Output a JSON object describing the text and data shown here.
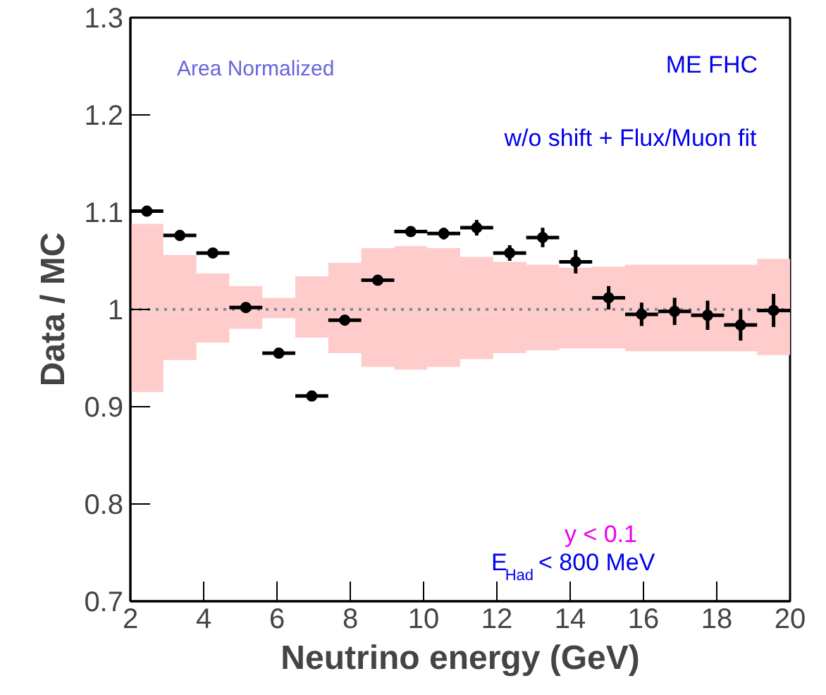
{
  "chart_data": {
    "type": "scatter",
    "xlabel": "Neutrino energy (GeV)",
    "ylabel": "Data / MC",
    "x": [
      2.45,
      3.35,
      4.25,
      5.15,
      6.05,
      6.95,
      7.85,
      8.75,
      9.65,
      10.55,
      11.45,
      12.35,
      13.25,
      14.15,
      15.05,
      15.95,
      16.85,
      17.75,
      18.65,
      19.55
    ],
    "series": [
      {
        "color": "#000000",
        "marker": "circle",
        "values": [
          1.101,
          1.076,
          1.058,
          1.002,
          0.955,
          0.911,
          0.989,
          1.03,
          1.08,
          1.078,
          1.084,
          1.058,
          1.074,
          1.049,
          1.012,
          0.995,
          0.998,
          0.994,
          0.984,
          0.999
        ],
        "errors": [
          0.003,
          0.003,
          0.003,
          0.003,
          0.003,
          0.003,
          0.003,
          0.003,
          0.004,
          0.006,
          0.008,
          0.008,
          0.01,
          0.012,
          0.012,
          0.012,
          0.014,
          0.015,
          0.016,
          0.017
        ],
        "xerrors": [
          0.45,
          0.45,
          0.45,
          0.45,
          0.45,
          0.45,
          0.45,
          0.45,
          0.45,
          0.45,
          0.45,
          0.45,
          0.45,
          0.45,
          0.45,
          0.45,
          0.45,
          0.45,
          0.45,
          0.45
        ]
      },
      {
        "type": "line",
        "color": "#7a8aa0",
        "line_style": "dotted",
        "x": [
          2,
          2.45,
          3.35,
          4.25,
          5.15,
          6.05,
          6.95,
          7.85,
          8.75,
          9.65,
          10.55,
          11.45,
          12.35,
          13.25,
          14.15,
          15.05,
          15.95,
          16.85,
          17.75,
          18.65,
          19.55,
          20
        ],
        "values": [
          1,
          1,
          1,
          1,
          1,
          1,
          1,
          1,
          1,
          1,
          1,
          1,
          1,
          1,
          1,
          1,
          1,
          1,
          1,
          1,
          1,
          1
        ],
        "lower": [
          0.915,
          0.915,
          0.948,
          0.966,
          0.98,
          0.991,
          0.971,
          0.955,
          0.941,
          0.938,
          0.941,
          0.949,
          0.955,
          0.958,
          0.96,
          0.96,
          0.957,
          0.957,
          0.957,
          0.957,
          0.953,
          0.953
        ],
        "upper": [
          1.088,
          1.088,
          1.056,
          1.037,
          1.024,
          1.012,
          1.034,
          1.048,
          1.063,
          1.065,
          1.063,
          1.054,
          1.049,
          1.046,
          1.043,
          1.044,
          1.046,
          1.046,
          1.046,
          1.046,
          1.052,
          1.052
        ]
      }
    ],
    "xlim": [
      2,
      20
    ],
    "xticks": [
      2,
      4,
      6,
      8,
      10,
      12,
      14,
      16,
      18,
      20
    ],
    "ylim": [
      0.7,
      1.3
    ],
    "yticks": [
      0.7,
      0.8,
      0.9,
      1,
      1.1,
      1.2,
      1.3
    ],
    "grid": false,
    "annotations": [
      "Area Normalized",
      "ME FHC",
      "w/o shift  + Flux/Muon fit",
      "y < 0.1",
      "E$_{Had}$ < 800 MeV"
    ]
  }
}
